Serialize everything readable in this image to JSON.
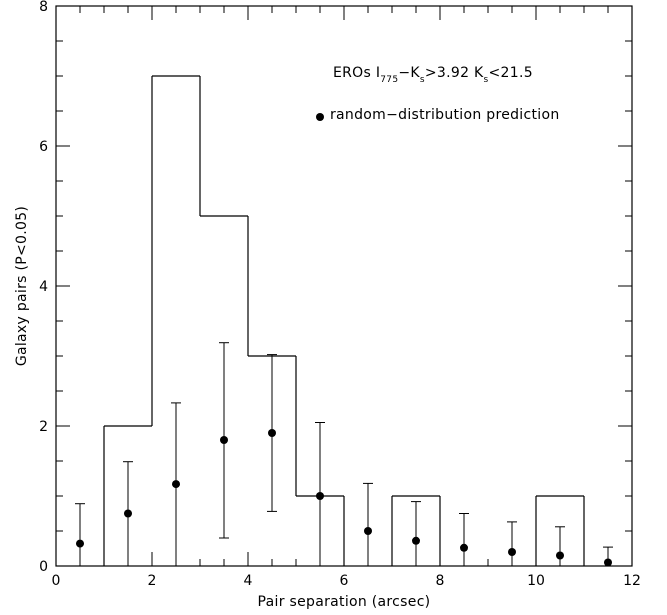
{
  "chart_data": {
    "type": "bar",
    "xlabel": "Pair separation (arcsec)",
    "ylabel": "Galaxy pairs (P<0.05)",
    "xlim": [
      0,
      12
    ],
    "ylim": [
      0,
      8
    ],
    "x_ticks": [
      "0",
      "2",
      "4",
      "6",
      "8",
      "10",
      "12"
    ],
    "y_ticks": [
      "0",
      "2",
      "4",
      "6",
      "8"
    ],
    "annotation": {
      "prefix": "EROs I",
      "sub1": "775",
      "mid": "−K",
      "sub2": "s",
      "mid2": ">3.92 K",
      "sub3": "s",
      "suffix": "<21.5"
    },
    "legend_label": "random−distribution prediction",
    "histogram": {
      "name": "",
      "bin_edges": [
        0,
        1,
        2,
        3,
        4,
        5,
        6,
        7,
        8,
        9,
        10,
        11,
        12
      ],
      "counts": [
        0,
        2,
        7,
        5,
        3,
        1,
        0,
        1,
        0,
        0,
        1,
        0
      ]
    },
    "prediction": {
      "name": "random−distribution prediction",
      "x": [
        0.5,
        1.5,
        2.5,
        3.5,
        4.5,
        5.5,
        6.5,
        7.5,
        8.5,
        9.5,
        10.5,
        11.5
      ],
      "y": [
        0.32,
        0.75,
        1.17,
        1.8,
        1.9,
        1.0,
        0.5,
        0.36,
        0.26,
        0.2,
        0.15,
        0.05
      ],
      "err_low": [
        0.0,
        0.0,
        0.0,
        0.4,
        0.78,
        0.0,
        0.0,
        0.0,
        0.0,
        0.0,
        0.0,
        0.0
      ],
      "err_high": [
        0.89,
        1.49,
        2.33,
        3.19,
        3.02,
        2.05,
        1.18,
        0.92,
        0.75,
        0.63,
        0.56,
        0.27
      ]
    }
  }
}
